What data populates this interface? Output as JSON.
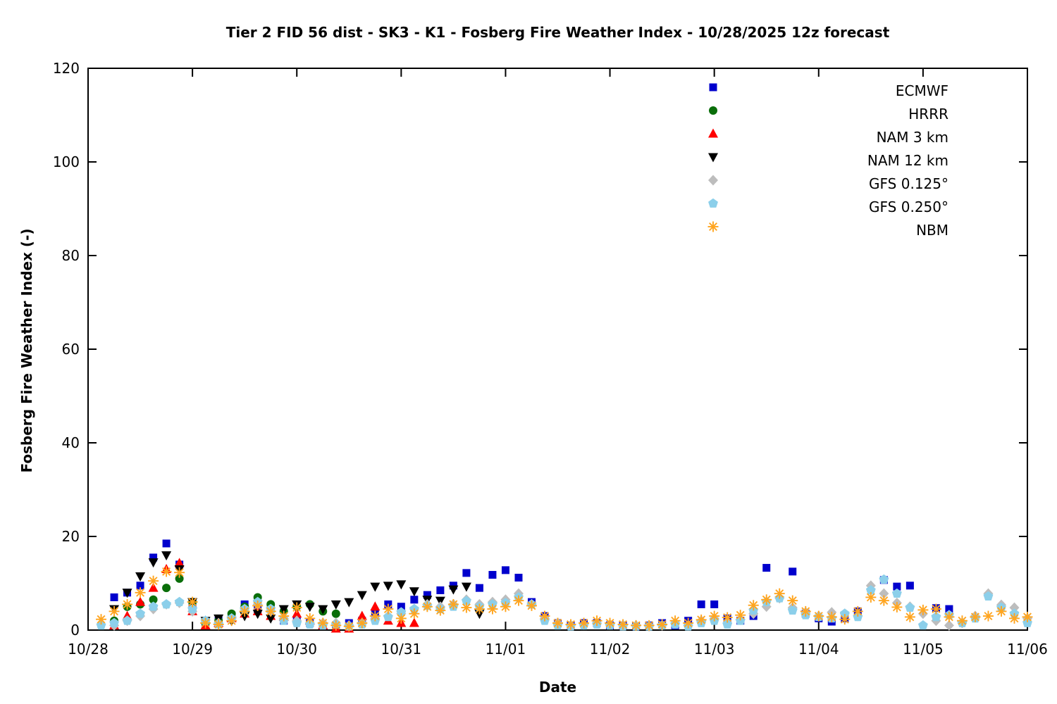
{
  "chart_data": {
    "type": "scatter",
    "title": "Tier 2 FID 56 dist - SK3 - K1 - Fosberg Fire Weather Index - 10/28/2025 12z forecast",
    "xlabel": "Date",
    "ylabel": "Fosberg Fire Weather Index (-)",
    "ylim": [
      0,
      120
    ],
    "yticks": [
      0,
      20,
      40,
      60,
      80,
      100,
      120
    ],
    "xlim_days": [
      0,
      9
    ],
    "xticks": [
      {
        "day": 0,
        "label": "10/28"
      },
      {
        "day": 1,
        "label": "10/29"
      },
      {
        "day": 2,
        "label": "10/30"
      },
      {
        "day": 3,
        "label": "10/31"
      },
      {
        "day": 4,
        "label": "11/01"
      },
      {
        "day": 5,
        "label": "11/02"
      },
      {
        "day": 6,
        "label": "11/03"
      },
      {
        "day": 7,
        "label": "11/04"
      },
      {
        "day": 8,
        "label": "11/05"
      },
      {
        "day": 9,
        "label": "11/06"
      }
    ],
    "grid": false,
    "legend_position": "top-right-inside",
    "series": [
      {
        "name": "ECMWF",
        "marker": "square",
        "color": "#0000CD",
        "start_day": 0.25,
        "step_days": 0.125,
        "values": [
          7,
          8,
          9.5,
          15.5,
          18.5,
          14,
          5,
          1.5,
          2,
          3,
          5.5,
          4.5,
          4.5,
          2,
          2,
          1.5,
          1,
          1,
          1.5,
          2,
          3.5,
          5.5,
          5,
          6.5,
          7.5,
          8.5,
          9.5,
          12.2,
          9,
          11.8,
          12.8,
          11.2,
          6,
          3,
          1.5,
          1,
          1.5,
          1.5,
          1,
          1,
          0.8,
          1,
          1.5,
          1,
          2,
          5.5,
          5.5,
          2.5,
          2,
          3,
          13.3,
          null,
          12.5,
          3.5,
          2.5,
          1.8,
          2.5,
          4,
          null,
          10.7,
          9.3,
          9.5,
          null,
          4.7,
          4.5
        ]
      },
      {
        "name": "HRRR",
        "marker": "circle",
        "color": "#0A6E0A",
        "start_day": 0.25,
        "step_days": 0.125,
        "values": [
          2,
          5,
          5.5,
          6.5,
          9,
          11,
          6,
          1.5,
          2,
          3.5,
          5,
          7,
          5.5,
          4,
          5,
          5.5,
          4,
          3.5
        ]
      },
      {
        "name": "NAM 3 km",
        "marker": "triangle-up",
        "color": "#FF0000",
        "start_day": 0.25,
        "step_days": 0.125,
        "values": [
          1,
          3,
          6,
          9,
          13,
          14.3,
          4,
          1,
          1.5,
          2.5,
          3.5,
          4,
          3,
          2.8,
          3.5,
          2,
          1,
          0.3,
          0.3,
          3,
          5,
          2,
          1.5,
          1.5
        ]
      },
      {
        "name": "NAM 12 km",
        "marker": "triangle-down",
        "color": "#000000",
        "start_day": 0.25,
        "step_days": 0.125,
        "values": [
          4.5,
          8,
          11.5,
          14.5,
          16,
          13,
          6,
          2,
          2.5,
          2,
          3,
          3.5,
          2.5,
          4.5,
          5.5,
          5,
          4.5,
          5.5,
          6,
          7.5,
          9.3,
          9.5,
          9.8,
          8.3,
          6.5,
          6.3,
          8.7,
          9.3,
          3.5
        ]
      },
      {
        "name": "GFS 0.125°",
        "marker": "diamond",
        "color": "#BDBDBD",
        "start_day": 0.25,
        "step_days": 0.125,
        "values": [
          1,
          2,
          3,
          4.5,
          5.5,
          5.8,
          4,
          2,
          1.5,
          2.5,
          4.5,
          5.5,
          4,
          2.5,
          2,
          1.5,
          1.5,
          1.5,
          1,
          1.5,
          2.5,
          3,
          3.5,
          4.5,
          5.5,
          5,
          5.5,
          6.5,
          5.5,
          6,
          6.5,
          7.8,
          5.5,
          2.5,
          1.5,
          1,
          1.2,
          1.5,
          1.2,
          1,
          1,
          0.8,
          1,
          1.5,
          1,
          2,
          2.5,
          1.5,
          2.2,
          3.5,
          5,
          6.8,
          4.8,
          3.8,
          3,
          3.8,
          3.5,
          3,
          9.5,
          7.8,
          5.8,
          5,
          3.5,
          2,
          1,
          1.5,
          3,
          7.8,
          5.4,
          4.8,
          2.5
        ]
      },
      {
        "name": "GFS 0.250°",
        "marker": "pentagon",
        "color": "#8CCFEA",
        "start_day": 0.125,
        "step_days": 0.125,
        "values": [
          1,
          1.5,
          2,
          3.5,
          5,
          5.5,
          6,
          4.5,
          2,
          1.2,
          2.5,
          4.5,
          6,
          4.5,
          2,
          1.5,
          1.2,
          1,
          1.2,
          0.8,
          1.2,
          2,
          2.8,
          3.8,
          4.5,
          5.2,
          4.5,
          5,
          6.2,
          5,
          5.5,
          5.8,
          7,
          5.5,
          2,
          1,
          0.8,
          1,
          1.2,
          1,
          0.8,
          0.8,
          0.8,
          1,
          1.2,
          0.8,
          1.5,
          2,
          1.2,
          2,
          4.2,
          6,
          6.8,
          4.2,
          3.2,
          2.8,
          2.5,
          3.5,
          2.8,
          8.5,
          10.8,
          7.8,
          4.8,
          1,
          2.8,
          3.2,
          1.5,
          2.5,
          7.2,
          4.8,
          3.5,
          1.5
        ]
      },
      {
        "name": "NBM",
        "marker": "star",
        "color": "#FFA520",
        "start_day": 0.125,
        "step_days": 0.125,
        "values": [
          2.3,
          4,
          5.5,
          8,
          10.5,
          12.5,
          12.3,
          6,
          1.5,
          1.2,
          2,
          4,
          5.2,
          4,
          3,
          4.8,
          2.5,
          1.5,
          1,
          0.8,
          1.5,
          3,
          4.5,
          2.5,
          3.5,
          5,
          4.2,
          5.5,
          4.8,
          4.5,
          4.5,
          5,
          6.3,
          5.2,
          3,
          1.5,
          1.2,
          1.5,
          2,
          1.5,
          1.2,
          1,
          1,
          1.2,
          2,
          1.5,
          2.2,
          3,
          2.7,
          3.2,
          5.3,
          6.5,
          7.8,
          6.3,
          4,
          3,
          2.8,
          2.3,
          4,
          7,
          6.3,
          4.9,
          2.8,
          4.3,
          4.5,
          2.8,
          2,
          2.8,
          3,
          4,
          2.5,
          2.8
        ]
      }
    ]
  }
}
